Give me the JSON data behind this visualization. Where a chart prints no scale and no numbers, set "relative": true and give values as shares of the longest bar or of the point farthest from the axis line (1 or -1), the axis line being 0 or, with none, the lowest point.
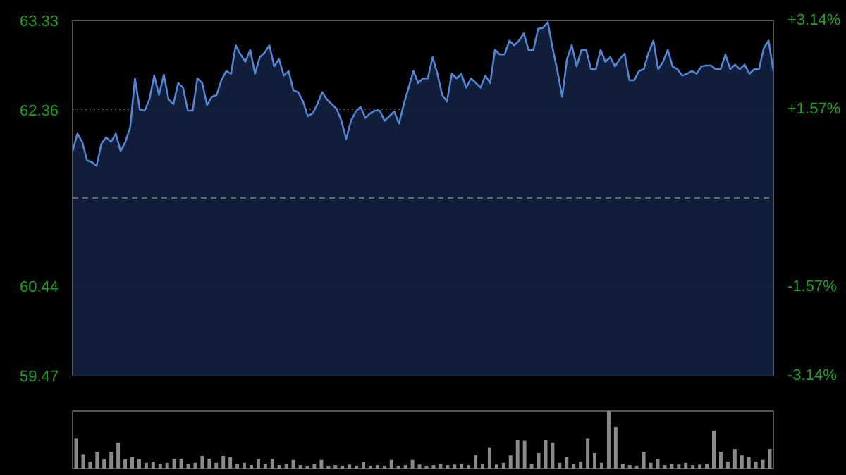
{
  "chart_data": [
    {
      "type": "area",
      "ylim": [
        59.47,
        63.33
      ],
      "yticks": [
        59.47,
        60.44,
        62.36,
        63.33
      ],
      "y2lim": [
        -3.14,
        3.14
      ],
      "y2ticks": [
        {
          "value": -3.14,
          "label": "-3.14%"
        },
        {
          "value": -1.57,
          "label": "-1.57%"
        },
        {
          "value": 1.57,
          "label": "+1.57%"
        },
        {
          "value": 3.14,
          "label": "+3.14%"
        }
      ],
      "categories": [
        null,
        null,
        null,
        null,
        null,
        null,
        null,
        null,
        null,
        null,
        null,
        null,
        null,
        null,
        null,
        null,
        null,
        null,
        null,
        null,
        null,
        null,
        null,
        null,
        null,
        null,
        null,
        null,
        null,
        null,
        null,
        null,
        null,
        null,
        null,
        null,
        null,
        null,
        null,
        null,
        null,
        null,
        null,
        null,
        null,
        null,
        null,
        null,
        null,
        null,
        null,
        null,
        null,
        null,
        null,
        null,
        null,
        null,
        null,
        null,
        null,
        null,
        null,
        null,
        null,
        null,
        null,
        null,
        null,
        null,
        null,
        null,
        null,
        null,
        null,
        null,
        null,
        null,
        null,
        null,
        null,
        null,
        null,
        null,
        null,
        null,
        null,
        null,
        null,
        null,
        null,
        null,
        null,
        null,
        null,
        null,
        null,
        null,
        null,
        null,
        null,
        null,
        null,
        null,
        null,
        null,
        null,
        null,
        null,
        null,
        null,
        null,
        null,
        null,
        null,
        null,
        null,
        null,
        null,
        null,
        null,
        null,
        null,
        null,
        null,
        null,
        null,
        null,
        null,
        null,
        null,
        null,
        null,
        null,
        null,
        null,
        null,
        null,
        null,
        null,
        null,
        null,
        null,
        null,
        null,
        null,
        null
      ],
      "tick_labels": "y",
      "grid": "y",
      "ref_lines": [
        {
          "axis": "y",
          "value": 61.4,
          "label": null,
          "color": "#666666",
          "line_style": "dashed"
        }
      ],
      "series": [
        {
          "color": "#4f86d8",
          "values": [
            61.91,
            62.1,
            62.01,
            61.81,
            61.79,
            61.75,
            61.99,
            62.06,
            62.01,
            62.1,
            61.91,
            62.01,
            62.17,
            62.7,
            62.36,
            62.35,
            62.47,
            62.73,
            62.52,
            62.74,
            62.47,
            62.42,
            62.65,
            62.6,
            62.35,
            62.35,
            62.7,
            62.65,
            62.41,
            62.5,
            62.52,
            62.68,
            62.78,
            62.75,
            63.06,
            62.96,
            62.88,
            63.01,
            62.75,
            62.93,
            62.98,
            63.06,
            62.83,
            62.91,
            62.73,
            62.78,
            62.57,
            62.55,
            62.45,
            62.29,
            62.32,
            62.42,
            62.55,
            62.47,
            62.42,
            62.37,
            62.24,
            62.04,
            62.24,
            62.34,
            62.39,
            62.27,
            62.32,
            62.35,
            62.35,
            62.24,
            62.29,
            62.34,
            62.21,
            62.42,
            62.6,
            62.78,
            62.65,
            62.7,
            62.7,
            62.93,
            62.75,
            62.52,
            62.45,
            62.75,
            62.7,
            62.75,
            62.6,
            62.7,
            62.65,
            62.6,
            62.73,
            62.65,
            63.01,
            62.96,
            62.96,
            63.11,
            63.06,
            63.11,
            63.19,
            63.01,
            63.01,
            63.24,
            63.25,
            63.31,
            63.03,
            62.78,
            62.5,
            62.91,
            63.06,
            62.83,
            63.01,
            63.01,
            62.8,
            62.8,
            63.01,
            62.88,
            62.93,
            62.83,
            62.91,
            62.97,
            62.68,
            62.68,
            62.78,
            62.8,
            62.98,
            63.11,
            62.8,
            62.88,
            63.01,
            62.83,
            62.8,
            62.73,
            62.75,
            62.78,
            62.75,
            62.83,
            62.84,
            62.84,
            62.8,
            62.8,
            62.96,
            62.8,
            62.85,
            62.8,
            62.85,
            62.75,
            62.8,
            62.8,
            63.03,
            63.11,
            62.78
          ]
        }
      ]
    },
    {
      "type": "bar",
      "relative": true,
      "color": "#8a8a8a",
      "tick_labels": false,
      "categories": [
        null,
        null,
        null,
        null,
        null,
        null,
        null,
        null,
        null,
        null,
        null,
        null,
        null,
        null,
        null,
        null,
        null,
        null,
        null,
        null,
        null,
        null,
        null,
        null,
        null,
        null,
        null,
        null,
        null,
        null,
        null,
        null,
        null,
        null,
        null,
        null,
        null,
        null,
        null,
        null,
        null,
        null,
        null,
        null,
        null,
        null,
        null,
        null,
        null,
        null,
        null,
        null,
        null,
        null,
        null,
        null,
        null,
        null,
        null,
        null,
        null,
        null,
        null,
        null,
        null,
        null,
        null,
        null,
        null,
        null,
        null,
        null,
        null,
        null,
        null,
        null,
        null,
        null,
        null,
        null,
        null,
        null,
        null,
        null,
        null,
        null,
        null,
        null,
        null,
        null,
        null,
        null,
        null,
        null,
        null,
        null,
        null,
        null,
        null,
        null
      ],
      "values": [
        0.52,
        0.25,
        0.12,
        0.29,
        0.17,
        0.29,
        0.45,
        0.16,
        0.2,
        0.17,
        0.1,
        0.12,
        0.08,
        0.1,
        0.17,
        0.17,
        0.08,
        0.1,
        0.22,
        0.17,
        0.1,
        0.22,
        0.2,
        0.08,
        0.1,
        0.06,
        0.17,
        0.08,
        0.17,
        0.06,
        0.08,
        0.15,
        0.06,
        0.05,
        0.08,
        0.15,
        0.05,
        0.06,
        0.05,
        0.07,
        0.05,
        0.11,
        0.05,
        0.06,
        0.05,
        0.15,
        0.05,
        0.06,
        0.15,
        0.07,
        0.05,
        0.06,
        0.08,
        0.06,
        0.07,
        0.08,
        0.06,
        0.23,
        0.08,
        0.37,
        0.07,
        0.1,
        0.23,
        0.5,
        0.48,
        0.08,
        0.27,
        0.5,
        0.45,
        0.1,
        0.2,
        0.08,
        0.12,
        0.52,
        0.27,
        0.1,
        1.0,
        0.72,
        0.08,
        0.06,
        0.05,
        0.29,
        0.1,
        0.17,
        0.06,
        0.08,
        0.07,
        0.1,
        0.06,
        0.07,
        0.08,
        0.66,
        0.29,
        0.12,
        0.34,
        0.23,
        0.2,
        0.12,
        0.15,
        0.34
      ]
    }
  ]
}
